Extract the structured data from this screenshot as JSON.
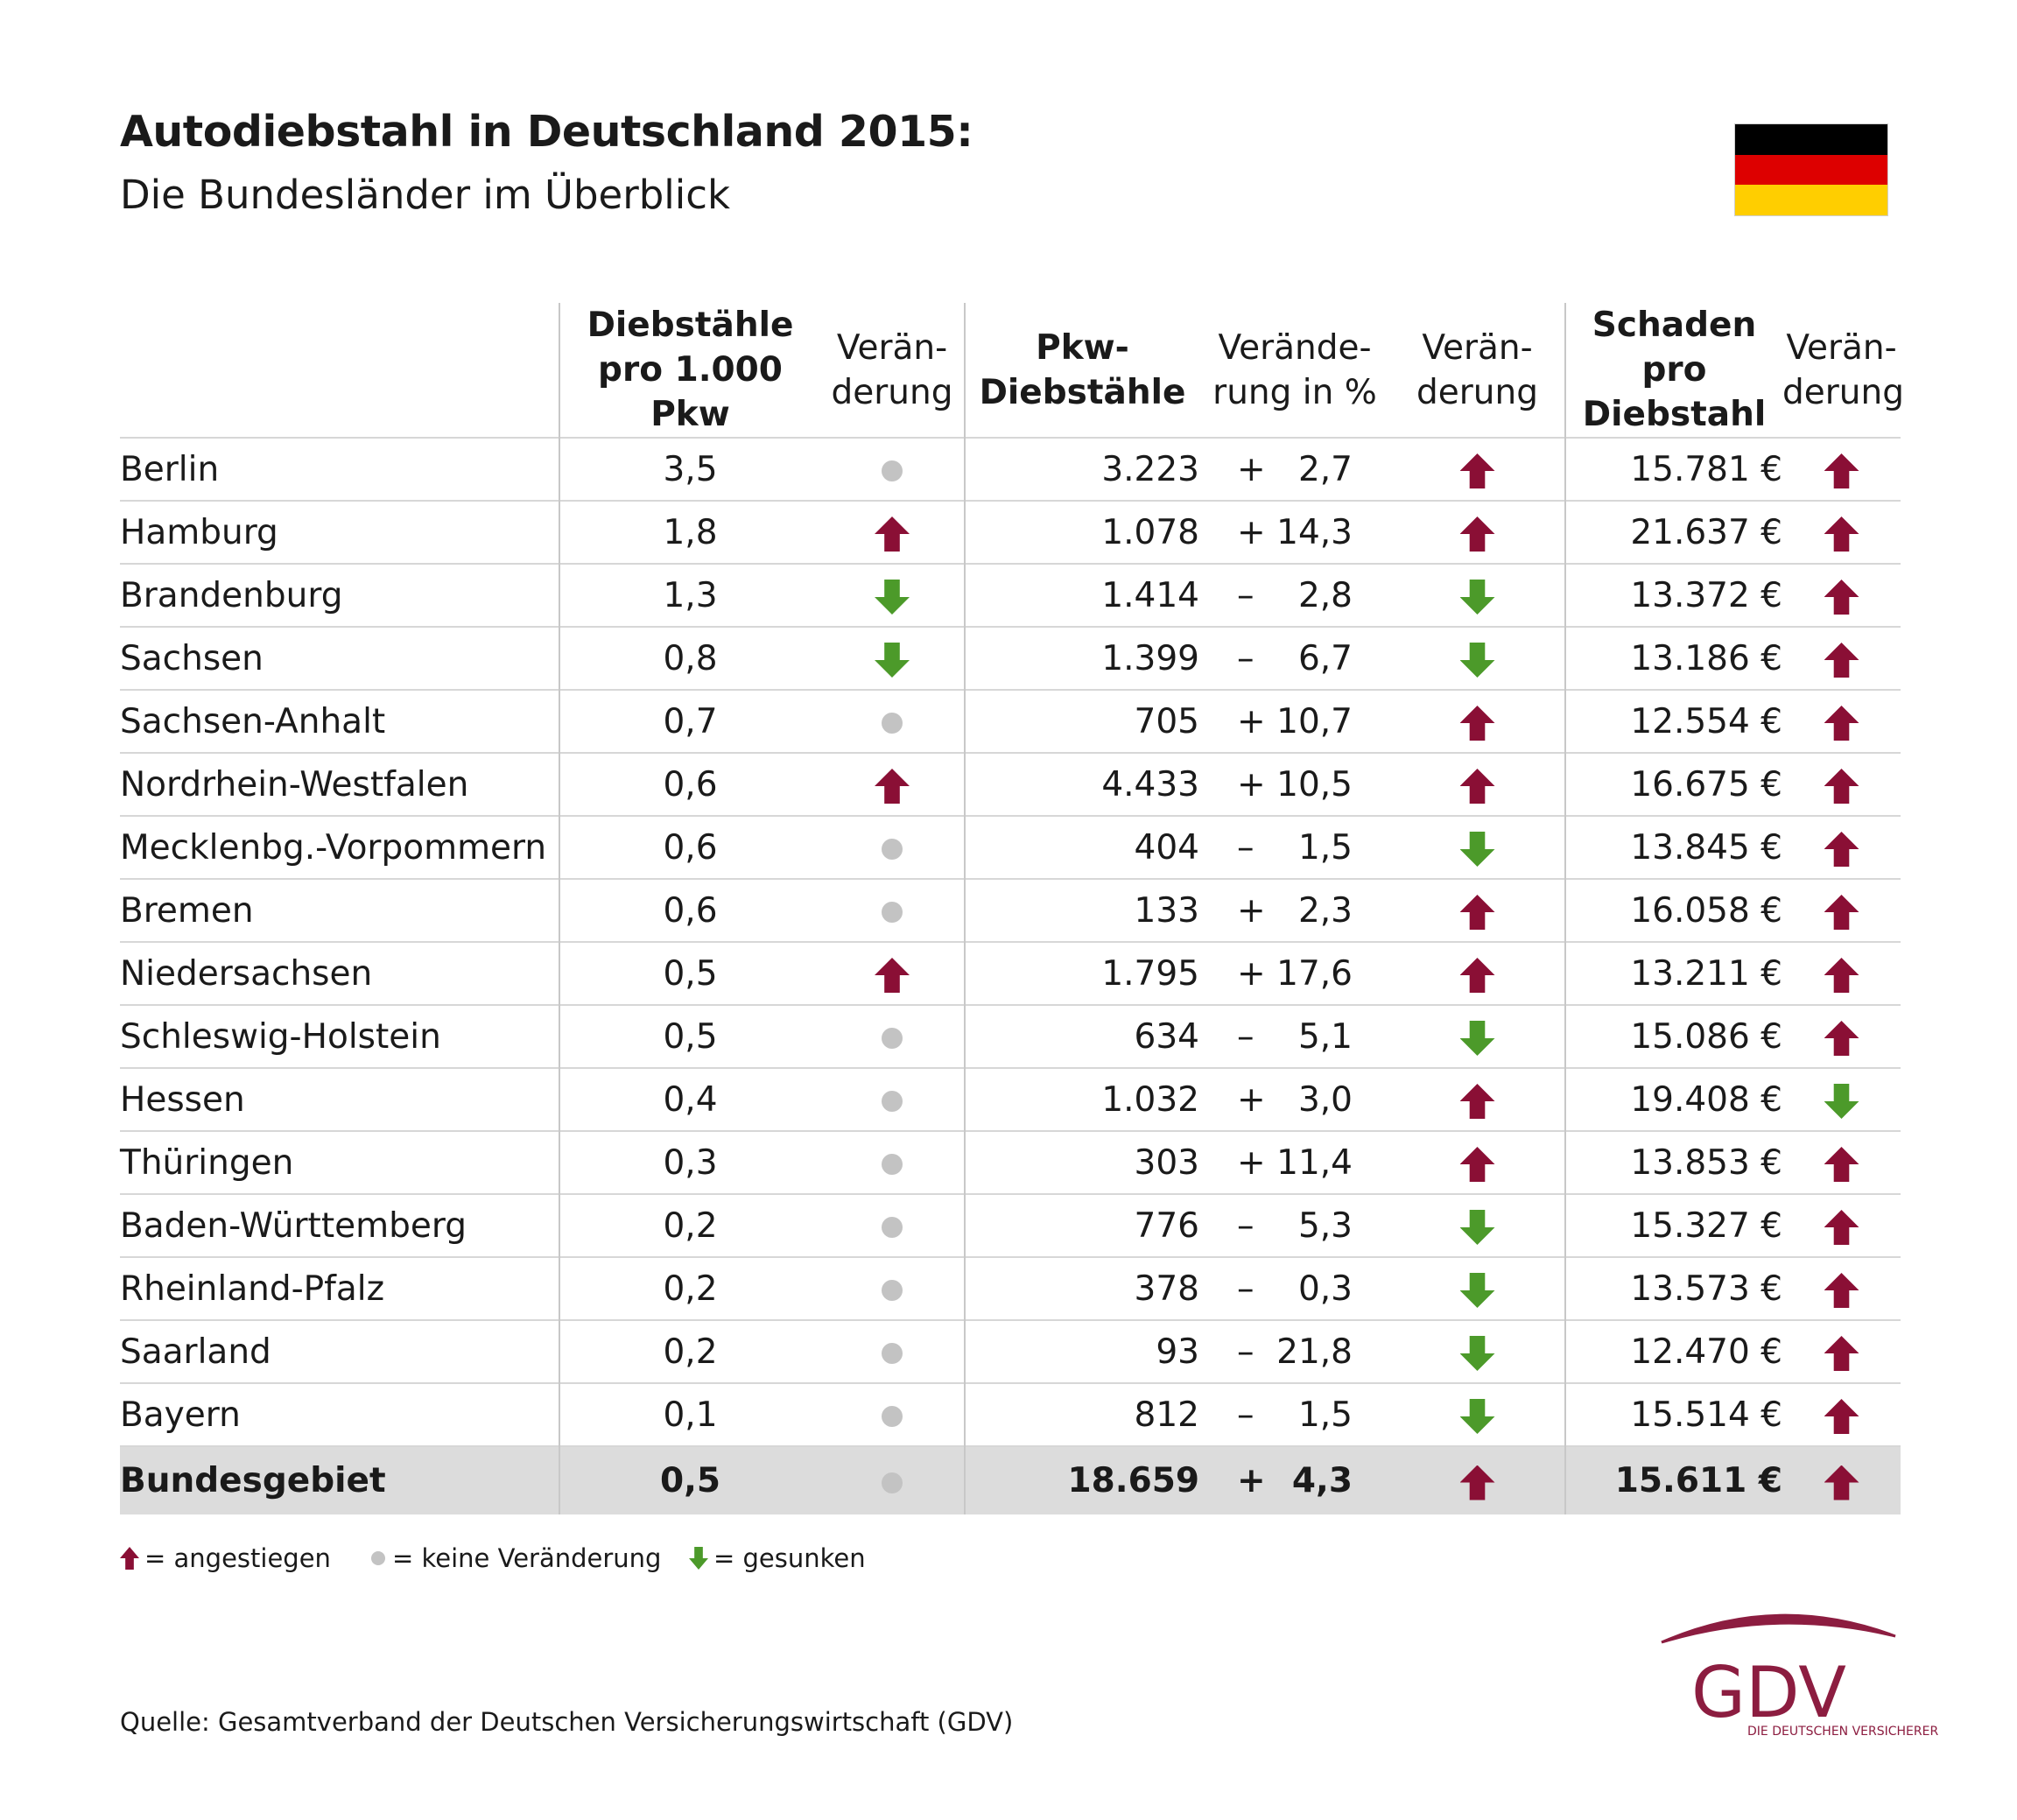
{
  "title": "Autodiebstahl in Deutschland 2015:",
  "subtitle": "Die Bundesländer im Überblick",
  "colors": {
    "up": "#8a0f35",
    "down": "#4c9a2a",
    "none": "#c3c3c3",
    "total_bg": "#dcdcdc",
    "brand": "#8c1d40"
  },
  "flag": {
    "colors": [
      "#000000",
      "#dd0000",
      "#ffce00"
    ]
  },
  "headers": {
    "region": "",
    "per1000": [
      "Diebstähle",
      "pro 1.000 Pkw"
    ],
    "change1": [
      "Verän-",
      "derung"
    ],
    "thefts": [
      "Pkw-",
      "Diebstähle"
    ],
    "pct": [
      "Verände-",
      "rung in %"
    ],
    "change2": [
      "Verän-",
      "derung"
    ],
    "damage": [
      "Schaden pro",
      "Diebstahl"
    ],
    "change3": [
      "Verän-",
      "derung"
    ]
  },
  "rows": [
    {
      "region": "Berlin",
      "per1000": "3,5",
      "c1": "none",
      "thefts": "3.223",
      "sign": "+",
      "pct": "2,7",
      "c2": "up",
      "damage": "15.781 €",
      "c3": "up"
    },
    {
      "region": "Hamburg",
      "per1000": "1,8",
      "c1": "up",
      "thefts": "1.078",
      "sign": "+",
      "pct": "14,3",
      "c2": "up",
      "damage": "21.637 €",
      "c3": "up"
    },
    {
      "region": "Brandenburg",
      "per1000": "1,3",
      "c1": "down",
      "thefts": "1.414",
      "sign": "–",
      "pct": "2,8",
      "c2": "down",
      "damage": "13.372 €",
      "c3": "up"
    },
    {
      "region": "Sachsen",
      "per1000": "0,8",
      "c1": "down",
      "thefts": "1.399",
      "sign": "–",
      "pct": "6,7",
      "c2": "down",
      "damage": "13.186 €",
      "c3": "up"
    },
    {
      "region": "Sachsen-Anhalt",
      "per1000": "0,7",
      "c1": "none",
      "thefts": "705",
      "sign": "+",
      "pct": "10,7",
      "c2": "up",
      "damage": "12.554 €",
      "c3": "up"
    },
    {
      "region": "Nordrhein-Westfalen",
      "per1000": "0,6",
      "c1": "up",
      "thefts": "4.433",
      "sign": "+",
      "pct": "10,5",
      "c2": "up",
      "damage": "16.675 €",
      "c3": "up"
    },
    {
      "region": "Mecklenbg.-Vorpommern",
      "per1000": "0,6",
      "c1": "none",
      "thefts": "404",
      "sign": "–",
      "pct": "1,5",
      "c2": "down",
      "damage": "13.845 €",
      "c3": "up"
    },
    {
      "region": "Bremen",
      "per1000": "0,6",
      "c1": "none",
      "thefts": "133",
      "sign": "+",
      "pct": "2,3",
      "c2": "up",
      "damage": "16.058 €",
      "c3": "up"
    },
    {
      "region": "Niedersachsen",
      "per1000": "0,5",
      "c1": "up",
      "thefts": "1.795",
      "sign": "+",
      "pct": "17,6",
      "c2": "up",
      "damage": "13.211 €",
      "c3": "up"
    },
    {
      "region": "Schleswig-Holstein",
      "per1000": "0,5",
      "c1": "none",
      "thefts": "634",
      "sign": "–",
      "pct": "5,1",
      "c2": "down",
      "damage": "15.086 €",
      "c3": "up"
    },
    {
      "region": "Hessen",
      "per1000": "0,4",
      "c1": "none",
      "thefts": "1.032",
      "sign": "+",
      "pct": "3,0",
      "c2": "up",
      "damage": "19.408 €",
      "c3": "down"
    },
    {
      "region": "Thüringen",
      "per1000": "0,3",
      "c1": "none",
      "thefts": "303",
      "sign": "+",
      "pct": "11,4",
      "c2": "up",
      "damage": "13.853 €",
      "c3": "up"
    },
    {
      "region": "Baden-Württemberg",
      "per1000": "0,2",
      "c1": "none",
      "thefts": "776",
      "sign": "–",
      "pct": "5,3",
      "c2": "down",
      "damage": "15.327 €",
      "c3": "up"
    },
    {
      "region": "Rheinland-Pfalz",
      "per1000": "0,2",
      "c1": "none",
      "thefts": "378",
      "sign": "–",
      "pct": "0,3",
      "c2": "down",
      "damage": "13.573 €",
      "c3": "up"
    },
    {
      "region": "Saarland",
      "per1000": "0,2",
      "c1": "none",
      "thefts": "93",
      "sign": "–",
      "pct": "21,8",
      "c2": "down",
      "damage": "12.470 €",
      "c3": "up"
    },
    {
      "region": "Bayern",
      "per1000": "0,1",
      "c1": "none",
      "thefts": "812",
      "sign": "–",
      "pct": "1,5",
      "c2": "down",
      "damage": "15.514 €",
      "c3": "up"
    }
  ],
  "total": {
    "region": "Bundesgebiet",
    "per1000": "0,5",
    "c1": "none",
    "thefts": "18.659",
    "sign": "+",
    "pct": "4,3",
    "c2": "up",
    "damage": "15.611 €",
    "c3": "up"
  },
  "legend": {
    "up": "= angestiegen",
    "none": "= keine Veränderung",
    "down": "= gesunken"
  },
  "source": "Quelle: Gesamtverband der Deutschen Versicherungswirtschaft (GDV)",
  "logo": {
    "wordmark": "GDV",
    "tagline": "DIE DEUTSCHEN VERSICHERER"
  }
}
